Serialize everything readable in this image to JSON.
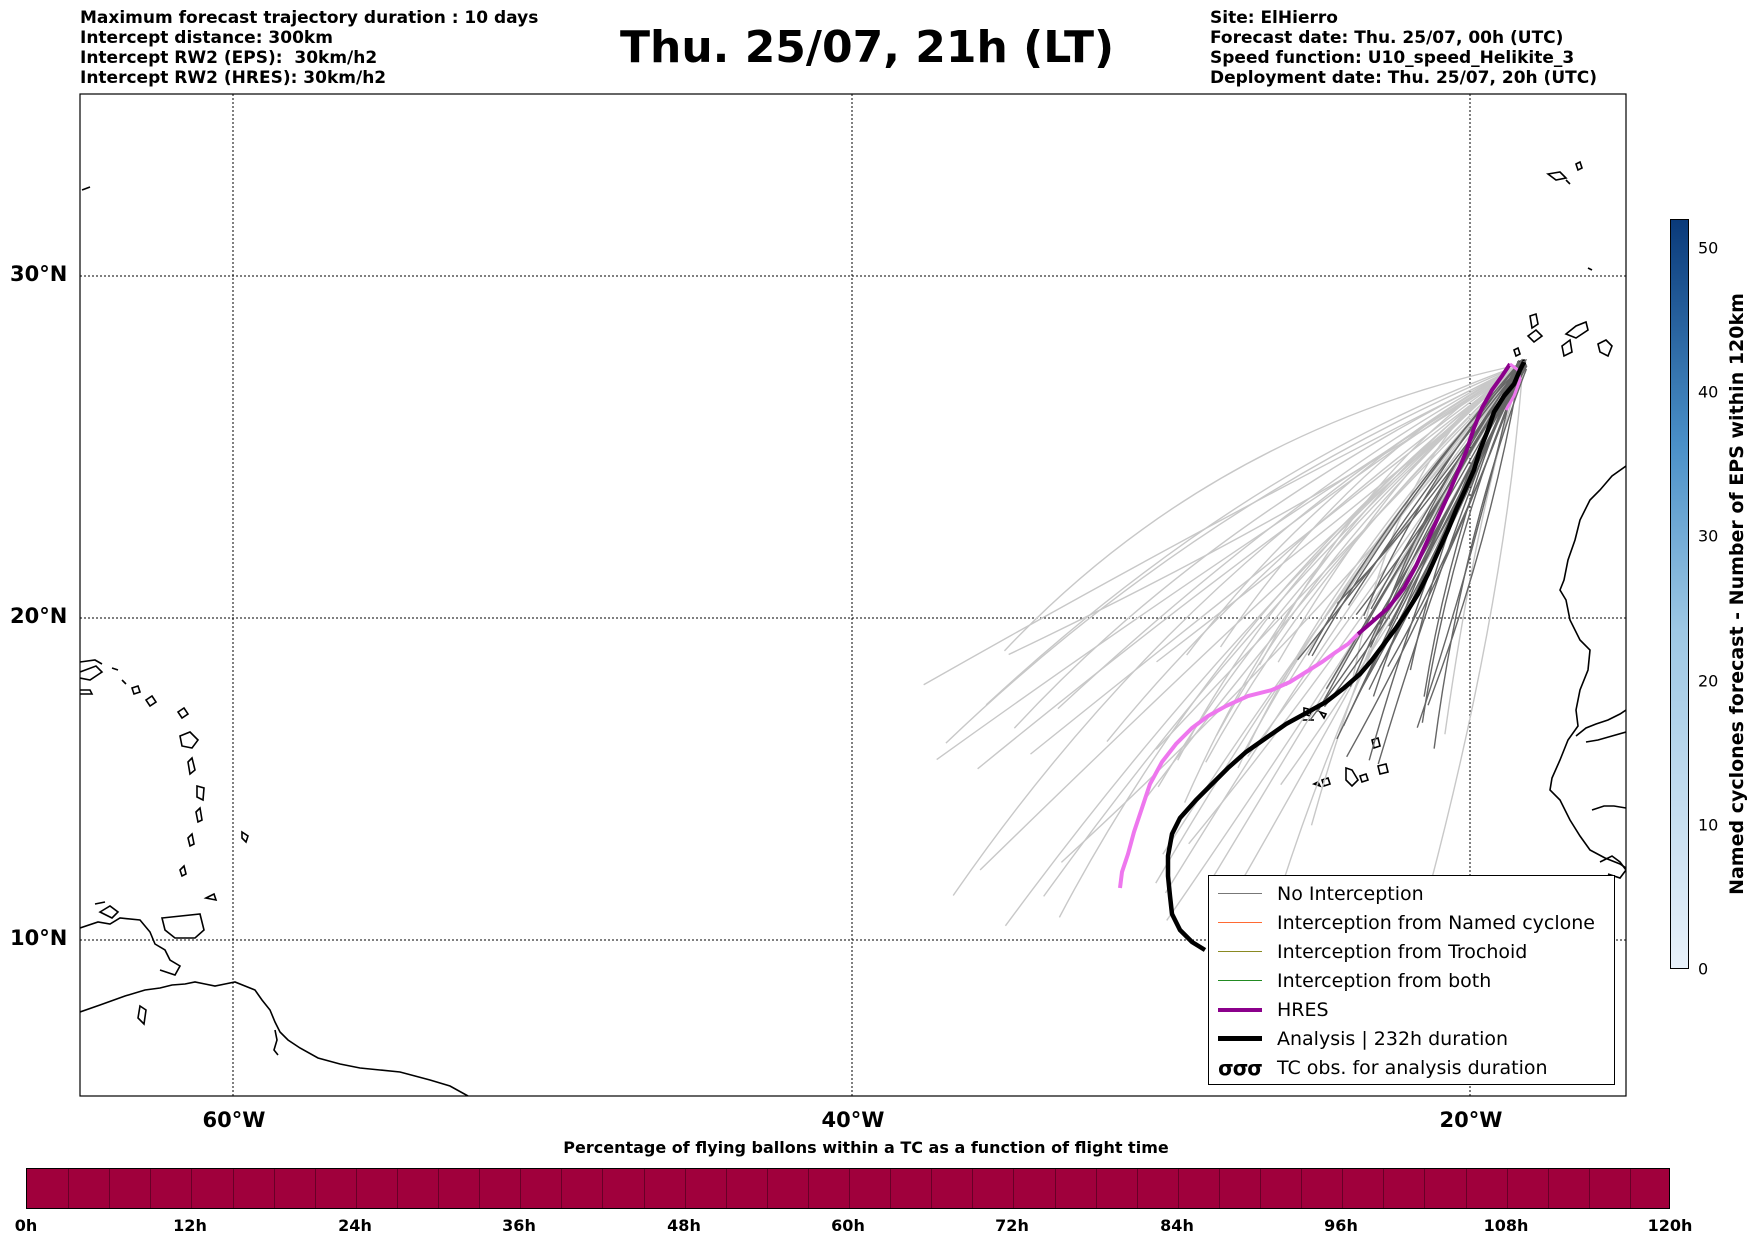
{
  "header_left": [
    "Maximum forecast trajectory duration : 10 days",
    "Intercept distance: 300km",
    "Intercept RW2 (EPS):  30km/h2",
    "Intercept RW2 (HRES): 30km/h2"
  ],
  "title": "Thu. 25/07, 21h (LT)",
  "header_right": [
    "Site: ElHierro",
    "Forecast date: Thu. 25/07, 00h (UTC)",
    "Speed function: U10_speed_Helikite_3",
    "Deployment date: Thu. 25/07, 20h (UTC)"
  ],
  "map": {
    "lat_labels": [
      "30°N",
      "20°N",
      "10°N"
    ],
    "lon_labels": [
      "60°W",
      "40°W",
      "20°W"
    ],
    "gridlines": "dotted",
    "coastline_color": "#000000",
    "eps_color": "#c8c8c8",
    "eps_dark_color": "#666666",
    "hres_color": "#ee77ee",
    "hres_dark_color": "#8b008b",
    "analysis_color": "#000000"
  },
  "legend": {
    "items": [
      {
        "label": "No Interception",
        "color": "#777777",
        "style": "thin"
      },
      {
        "label": "Interception from Named cyclone",
        "color": "#ff6a33",
        "style": "thin"
      },
      {
        "label": "Interception from Trochoid",
        "color": "#8a8a22",
        "style": "thin"
      },
      {
        "label": "Interception from both",
        "color": "#228b22",
        "style": "thin"
      },
      {
        "label": "HRES",
        "color": "#8b008b",
        "style": "medium"
      },
      {
        "label": "Analysis | 232h duration",
        "color": "#000000",
        "style": "thick"
      },
      {
        "label": "TC obs. for analysis duration",
        "color": "#000000",
        "style": "symbol",
        "symbol": "σσσ"
      }
    ]
  },
  "colorbar": {
    "title": "Named cyclones forecast - Number of EPS within 120km",
    "ticks": [
      "0",
      "10",
      "20",
      "30",
      "40",
      "50"
    ],
    "min": 0,
    "max": 52,
    "color_low": "#e8f1fa",
    "color_high": "#0a3a7a"
  },
  "percentage_bar": {
    "title": "Percentage of flying ballons within a TC as a function of flight time",
    "ticks": [
      "0h",
      "12h",
      "24h",
      "36h",
      "48h",
      "60h",
      "72h",
      "84h",
      "96h",
      "108h",
      "120h"
    ],
    "fill_color": "#a0003c"
  }
}
